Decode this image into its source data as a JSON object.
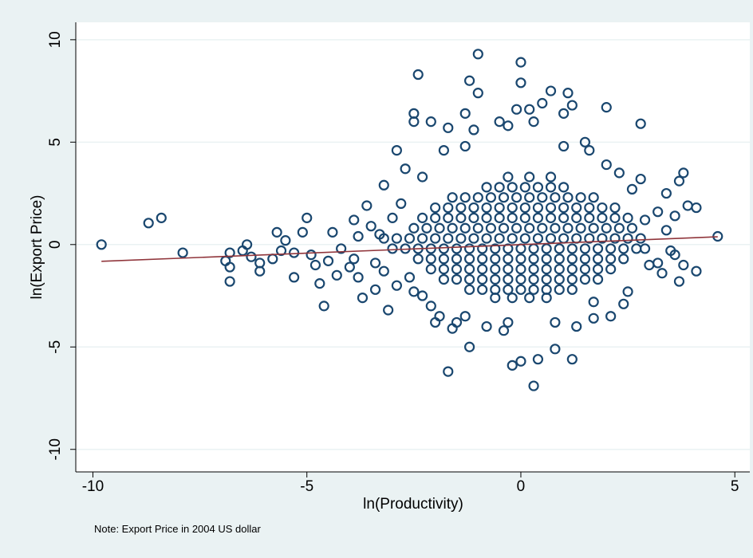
{
  "chart_data": {
    "type": "scatter",
    "x_label": "ln(Productivity)",
    "y_label": "ln(Export Price)",
    "note": "Note: Export Price in 2004 US dollar",
    "xlim": [
      -10.4,
      5.35
    ],
    "ylim": [
      -11.1,
      10.85
    ],
    "xticks": [
      -10,
      -5,
      0,
      5
    ],
    "yticks": [
      -10,
      -5,
      0,
      5,
      10
    ],
    "grid": true,
    "points": {
      "color": "#1a476f",
      "x": [
        -9.8,
        -8.7,
        -8.4,
        -7.9,
        -6.9,
        -6.8,
        -6.8,
        -6.8,
        -6.5,
        -6.4,
        -6.3,
        -6.1,
        -6.1,
        -5.8,
        -5.7,
        -5.6,
        -5.5,
        -5.3,
        -5.3,
        -5.1,
        -5.0,
        -4.9,
        -4.8,
        -4.7,
        -4.6,
        -4.5,
        -4.4,
        -4.3,
        -4.2,
        -4.0,
        -3.9,
        -3.9,
        -3.8,
        -3.8,
        -3.7,
        -3.6,
        -3.5,
        -3.4,
        -3.4,
        -3.3,
        -3.2,
        -3.2,
        -3.1,
        -3.0,
        -2.9,
        -2.8,
        -2.9,
        -2.7,
        -2.6,
        -2.5,
        -2.5,
        -2.5,
        -2.3,
        -2.3,
        -2.4,
        -2.1,
        -2.0,
        -2.1,
        -1.9,
        -1.8,
        -1.7,
        -1.7,
        -1.6,
        -1.5,
        -1.3,
        -1.3,
        -1.3,
        -1.2,
        -1.1,
        -1.0,
        -1.0,
        -1.2,
        -0.8,
        -0.5,
        -0.4,
        -0.3,
        -0.3,
        -0.2,
        -0.1,
        0.0,
        0.0,
        0.0,
        0.2,
        0.3,
        0.4,
        0.3,
        0.5,
        0.7,
        0.8,
        0.8,
        1.0,
        1.0,
        1.1,
        1.2,
        1.2,
        1.3,
        1.5,
        1.7,
        1.6,
        1.7,
        2.0,
        2.0,
        2.1,
        2.3,
        2.4,
        2.5,
        2.6,
        2.8,
        2.8,
        2.9,
        3.0,
        3.2,
        3.3,
        3.4,
        3.4,
        3.6,
        3.7,
        3.8,
        3.7,
        3.8,
        3.9,
        4.1,
        4.1,
        3.6,
        3.5,
        4.6,
        3.2,
        2.9,
        -0.3,
        0.2,
        0.7,
        -0.8,
        -0.5,
        -0.2,
        0.1,
        0.4,
        0.7,
        1.0,
        -1.6,
        -1.3,
        -1.0,
        -0.7,
        -0.4,
        -0.1,
        0.2,
        0.5,
        0.8,
        1.1,
        1.4,
        1.7,
        -2.0,
        -1.7,
        -1.4,
        -1.1,
        -0.8,
        -0.5,
        -0.2,
        0.1,
        0.4,
        0.7,
        1.0,
        1.3,
        1.6,
        1.9,
        2.2,
        -2.3,
        -2.0,
        -1.7,
        -1.4,
        -1.1,
        -0.8,
        -0.5,
        -0.2,
        0.1,
        0.4,
        0.7,
        1.0,
        1.3,
        1.6,
        1.9,
        2.2,
        2.5,
        -2.5,
        -2.2,
        -1.9,
        -1.6,
        -1.3,
        -1.0,
        -0.7,
        -0.4,
        -0.1,
        0.2,
        0.5,
        0.8,
        1.1,
        1.4,
        1.7,
        2.0,
        2.3,
        2.6,
        -3.2,
        -2.9,
        -2.6,
        -2.3,
        -2.0,
        -1.7,
        -1.4,
        -1.1,
        -0.8,
        -0.5,
        -0.2,
        0.1,
        0.4,
        0.7,
        1.0,
        1.3,
        1.6,
        1.9,
        2.2,
        2.5,
        2.8,
        -3.0,
        -2.7,
        -2.4,
        -2.1,
        -1.8,
        -1.5,
        -1.2,
        -0.9,
        -0.6,
        -0.3,
        0.0,
        0.3,
        0.6,
        0.9,
        1.2,
        1.5,
        1.8,
        2.1,
        2.4,
        2.7,
        -2.4,
        -2.1,
        -1.8,
        -1.5,
        -1.2,
        -0.9,
        -0.6,
        -0.3,
        0.0,
        0.3,
        0.6,
        0.9,
        1.2,
        1.5,
        1.8,
        2.1,
        2.4,
        -2.1,
        -1.8,
        -1.5,
        -1.2,
        -0.9,
        -0.6,
        -0.3,
        0.0,
        0.3,
        0.6,
        0.9,
        1.2,
        1.5,
        1.8,
        2.1,
        -1.8,
        -1.5,
        -1.2,
        -0.9,
        -0.6,
        -0.3,
        0.0,
        0.3,
        0.6,
        0.9,
        1.2,
        1.5,
        1.8,
        -1.2,
        -0.9,
        -0.6,
        -0.3,
        0.0,
        0.3,
        0.6,
        0.9,
        1.2,
        -0.6,
        -0.2,
        0.2,
        0.6
      ],
      "values": [
        0,
        1.05,
        1.3,
        -0.4,
        -0.8,
        -1.1,
        -1.8,
        -0.4,
        -0.3,
        0,
        -0.6,
        -1.3,
        -0.9,
        -0.7,
        0.6,
        -0.3,
        0.2,
        -1.6,
        -0.4,
        0.6,
        1.3,
        -0.5,
        -1.0,
        -1.9,
        -3.0,
        -0.8,
        0.6,
        -1.5,
        -0.2,
        -1.1,
        1.2,
        -0.7,
        -1.6,
        0.4,
        -2.6,
        1.9,
        0.9,
        -0.9,
        -2.2,
        0.5,
        2.9,
        -1.3,
        -3.2,
        1.3,
        -2.0,
        2.0,
        4.6,
        3.7,
        -1.6,
        -2.3,
        6.4,
        6.0,
        3.3,
        -2.5,
        8.3,
        -3.0,
        -3.8,
        6.0,
        -3.5,
        4.6,
        5.7,
        -6.2,
        -4.1,
        -3.8,
        -3.5,
        4.8,
        6.4,
        -5.0,
        5.6,
        9.3,
        7.4,
        8.0,
        -4.0,
        6.0,
        -4.2,
        5.8,
        -3.8,
        -5.9,
        6.6,
        8.9,
        7.9,
        -5.7,
        6.6,
        6.0,
        -5.6,
        -6.9,
        6.9,
        7.5,
        -3.8,
        -5.1,
        6.4,
        4.8,
        7.4,
        6.8,
        -5.6,
        -4.0,
        5.0,
        -3.6,
        4.6,
        -2.8,
        6.7,
        3.9,
        -3.5,
        3.5,
        -2.9,
        -2.3,
        2.7,
        5.9,
        3.2,
        -0.2,
        -1.0,
        1.6,
        -1.4,
        2.5,
        0.7,
        -0.5,
        3.1,
        3.5,
        -1.8,
        -1.0,
        1.9,
        1.8,
        -1.3,
        1.4,
        -0.3,
        0.4,
        -0.9,
        1.2,
        3.3,
        3.3,
        3.3,
        2.8,
        2.8,
        2.8,
        2.8,
        2.8,
        2.8,
        2.8,
        2.3,
        2.3,
        2.3,
        2.3,
        2.3,
        2.3,
        2.3,
        2.3,
        2.3,
        2.3,
        2.3,
        2.3,
        1.8,
        1.8,
        1.8,
        1.8,
        1.8,
        1.8,
        1.8,
        1.8,
        1.8,
        1.8,
        1.8,
        1.8,
        1.8,
        1.8,
        1.8,
        1.3,
        1.3,
        1.3,
        1.3,
        1.3,
        1.3,
        1.3,
        1.3,
        1.3,
        1.3,
        1.3,
        1.3,
        1.3,
        1.3,
        1.3,
        1.3,
        1.3,
        0.8,
        0.8,
        0.8,
        0.8,
        0.8,
        0.8,
        0.8,
        0.8,
        0.8,
        0.8,
        0.8,
        0.8,
        0.8,
        0.8,
        0.8,
        0.8,
        0.8,
        0.8,
        0.3,
        0.3,
        0.3,
        0.3,
        0.3,
        0.3,
        0.3,
        0.3,
        0.3,
        0.3,
        0.3,
        0.3,
        0.3,
        0.3,
        0.3,
        0.3,
        0.3,
        0.3,
        0.3,
        0.3,
        0.3,
        -0.2,
        -0.2,
        -0.2,
        -0.2,
        -0.2,
        -0.2,
        -0.2,
        -0.2,
        -0.2,
        -0.2,
        -0.2,
        -0.2,
        -0.2,
        -0.2,
        -0.2,
        -0.2,
        -0.2,
        -0.2,
        -0.2,
        -0.2,
        -0.7,
        -0.7,
        -0.7,
        -0.7,
        -0.7,
        -0.7,
        -0.7,
        -0.7,
        -0.7,
        -0.7,
        -0.7,
        -0.7,
        -0.7,
        -0.7,
        -0.7,
        -0.7,
        -0.7,
        -1.2,
        -1.2,
        -1.2,
        -1.2,
        -1.2,
        -1.2,
        -1.2,
        -1.2,
        -1.2,
        -1.2,
        -1.2,
        -1.2,
        -1.2,
        -1.2,
        -1.2,
        -1.7,
        -1.7,
        -1.7,
        -1.7,
        -1.7,
        -1.7,
        -1.7,
        -1.7,
        -1.7,
        -1.7,
        -1.7,
        -1.7,
        -1.7,
        -2.2,
        -2.2,
        -2.2,
        -2.2,
        -2.2,
        -2.2,
        -2.2,
        -2.2,
        -2.2,
        -2.6,
        -2.6,
        -2.6,
        -2.6
      ]
    },
    "fit_line": {
      "color": "#90353b",
      "x": [
        -9.8,
        4.6
      ],
      "values": [
        -0.82,
        0.38
      ]
    }
  }
}
